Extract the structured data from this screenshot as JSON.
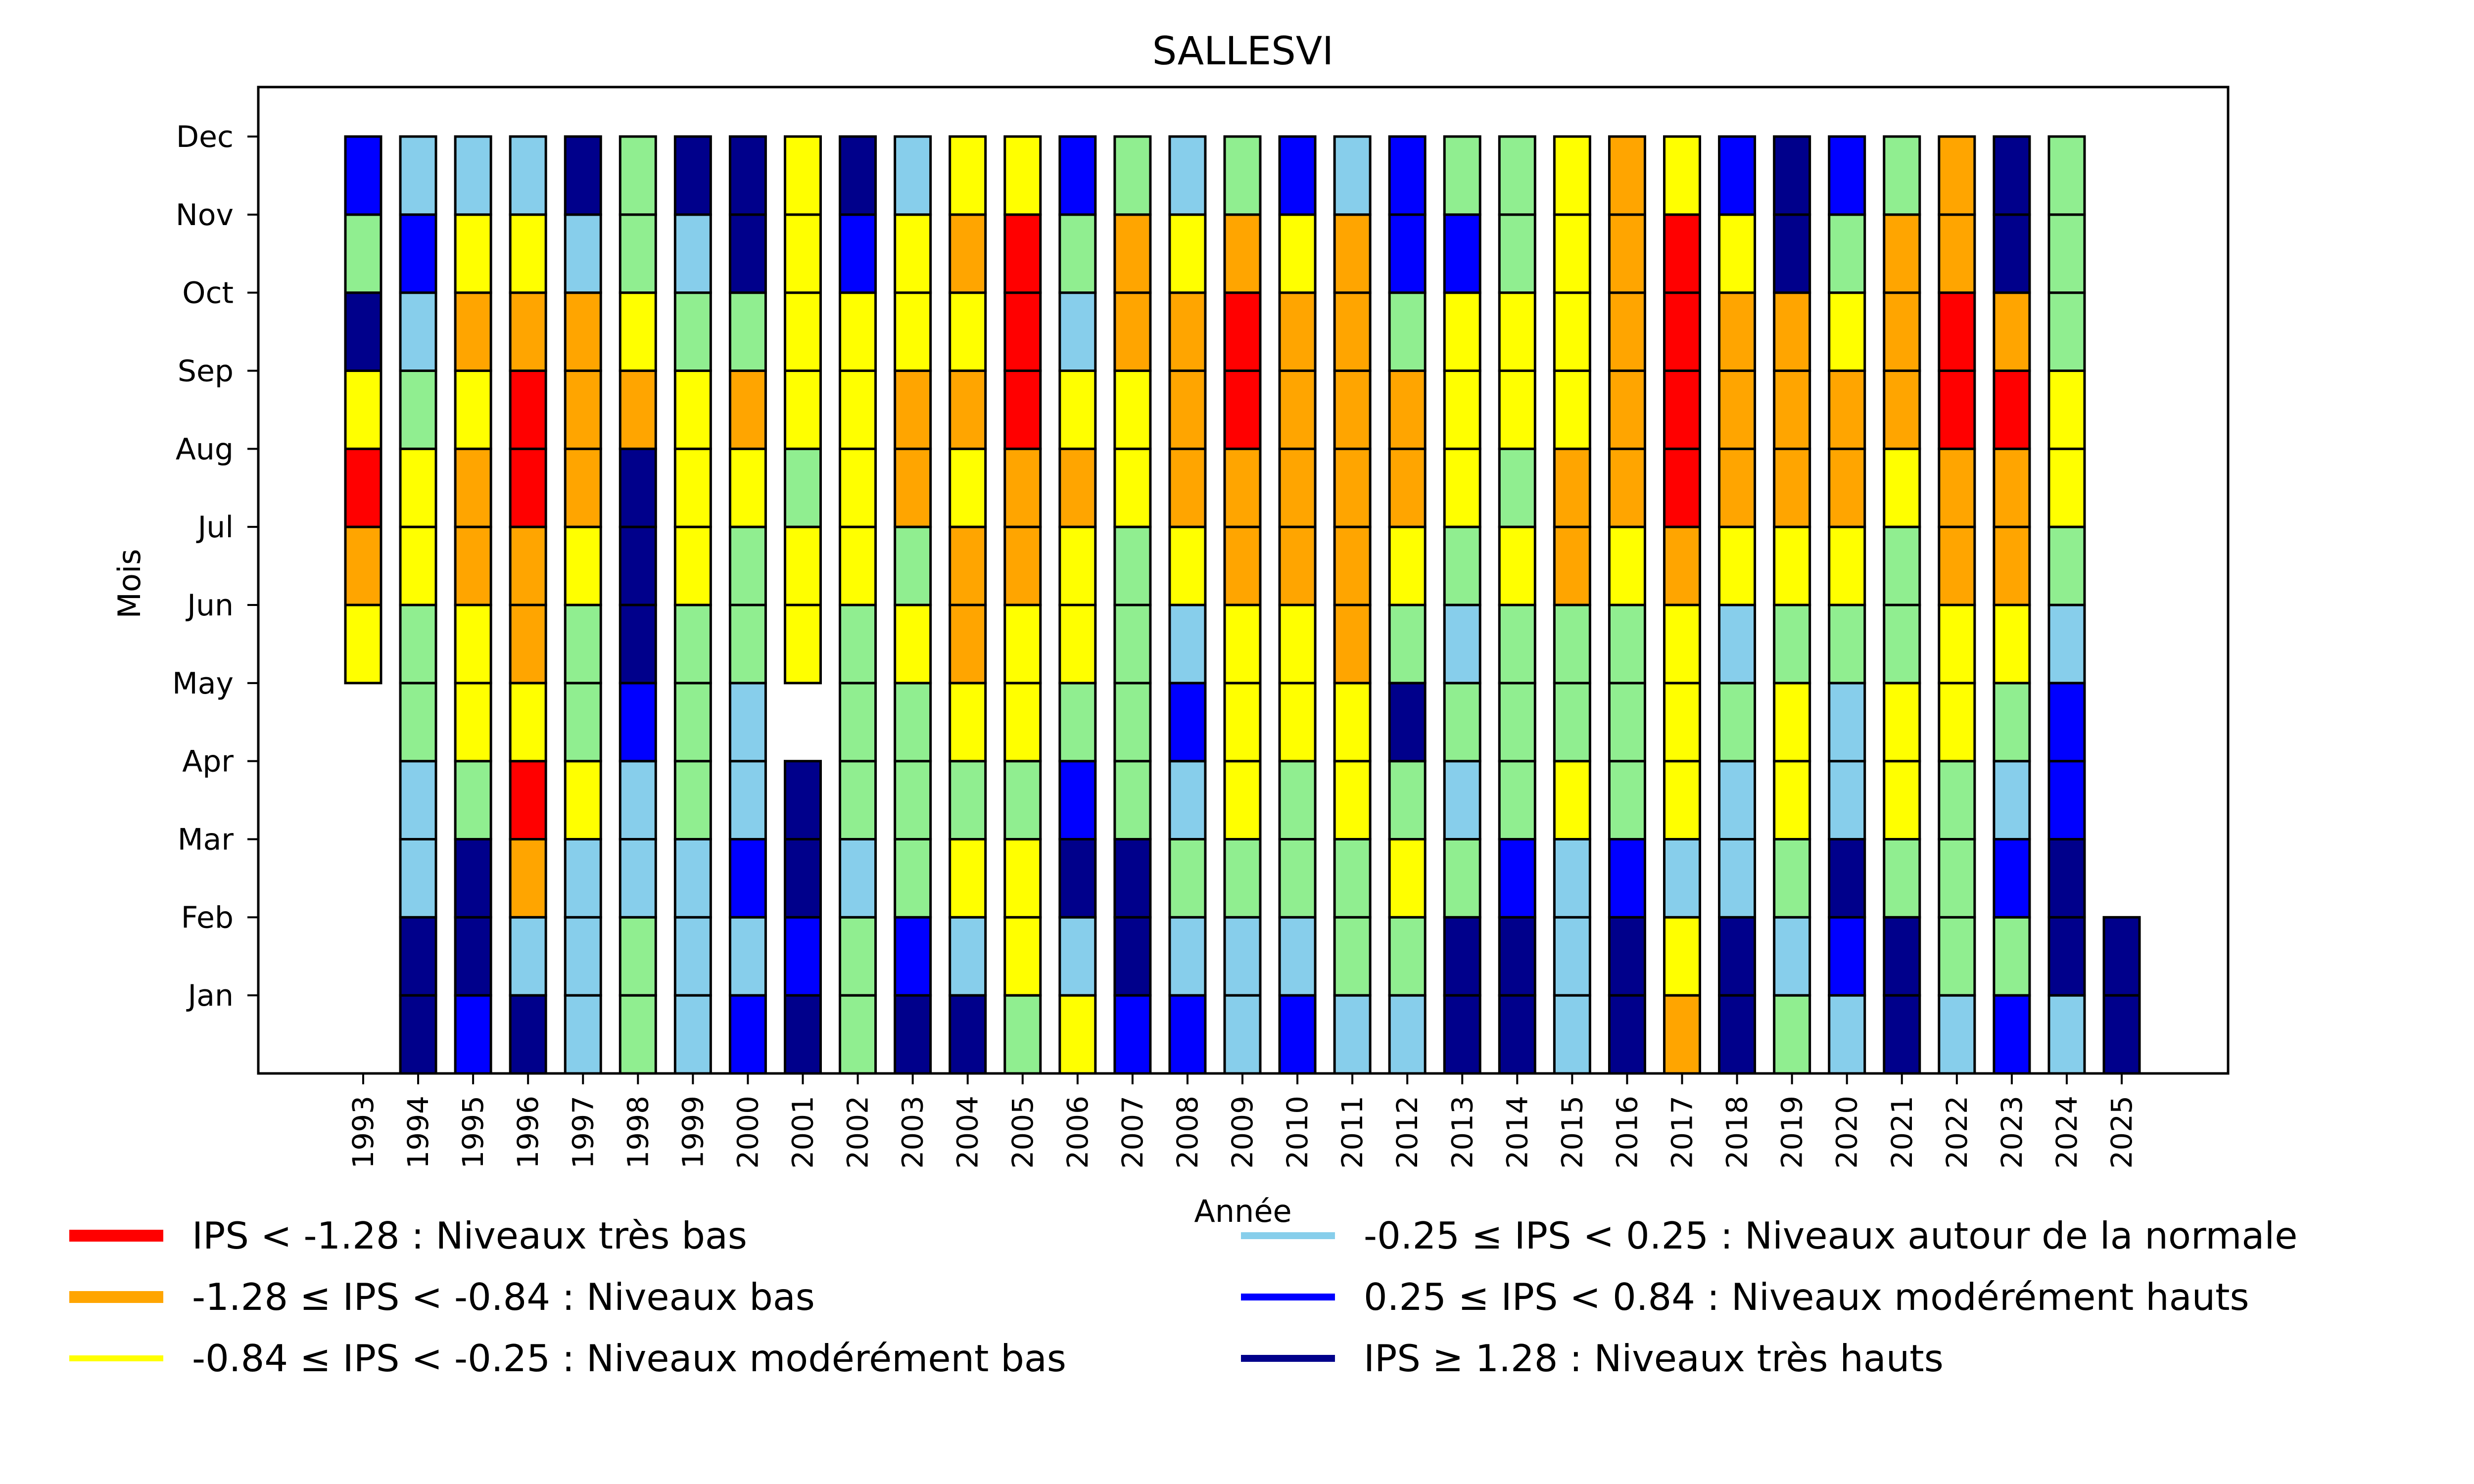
{
  "chart_data": {
    "type": "heatmap",
    "title": "SALLESVI",
    "xlabel": "Année",
    "ylabel": "Mois",
    "months": [
      "Jan",
      "Feb",
      "Mar",
      "Apr",
      "May",
      "Jun",
      "Jul",
      "Aug",
      "Sep",
      "Oct",
      "Nov",
      "Dec"
    ],
    "years": [
      1993,
      1994,
      1995,
      1996,
      1997,
      1998,
      1999,
      2000,
      2001,
      2002,
      2003,
      2004,
      2005,
      2006,
      2007,
      2008,
      2009,
      2010,
      2011,
      2012,
      2013,
      2014,
      2015,
      2016,
      2017,
      2018,
      2019,
      2020,
      2021,
      2022,
      2023,
      2024,
      2025
    ],
    "categories": {
      "R": {
        "label": "IPS < -1.28 : Niveaux très bas",
        "color": "#ff0000"
      },
      "O": {
        "label": "-1.28 ≤ IPS < -0.84 : Niveaux bas",
        "color": "#ffa500"
      },
      "Y": {
        "label": "-0.84 ≤ IPS < -0.25 : Niveaux modérément bas",
        "color": "#ffff00"
      },
      "G": {
        "label": "",
        "color": "#90ee90"
      },
      "S": {
        "label": "-0.25 ≤ IPS < 0.25 : Niveaux autour de la normale",
        "color": "#87ceeb"
      },
      "B": {
        "label": "0.25 ≤ IPS < 0.84 : Niveaux modérément hauts",
        "color": "#0000ff"
      },
      "N": {
        "label": "IPS ≥ 1.28 : Niveaux très hauts",
        "color": "#00008b"
      }
    },
    "values_note": "Per year, 12 entries Jan..Dec; null = no data",
    "values": {
      "1993": [
        null,
        null,
        null,
        null,
        null,
        "Y",
        "O",
        "R",
        "Y",
        "N",
        "G",
        "B"
      ],
      "1994": [
        "N",
        "N",
        "S",
        "S",
        "G",
        "G",
        "Y",
        "Y",
        "G",
        "S",
        "B",
        "S"
      ],
      "1995": [
        "B",
        "N",
        "N",
        "G",
        "Y",
        "Y",
        "O",
        "O",
        "Y",
        "O",
        "Y",
        "S"
      ],
      "1996": [
        "N",
        "S",
        "O",
        "R",
        "Y",
        "O",
        "O",
        "R",
        "R",
        "O",
        "Y",
        "S"
      ],
      "1997": [
        "S",
        "S",
        "S",
        "Y",
        "G",
        "G",
        "Y",
        "O",
        "O",
        "O",
        "S",
        "N"
      ],
      "1998": [
        "G",
        "G",
        "S",
        "S",
        "B",
        "N",
        "N",
        "N",
        "O",
        "Y",
        "G",
        "G"
      ],
      "1999": [
        "S",
        "S",
        "S",
        "G",
        "G",
        "G",
        "Y",
        "Y",
        "Y",
        "G",
        "S",
        "N"
      ],
      "2000": [
        "B",
        "S",
        "B",
        "S",
        "S",
        "G",
        "G",
        "Y",
        "O",
        "G",
        "N",
        "N"
      ],
      "2001": [
        "N",
        "B",
        "N",
        "N",
        null,
        "Y",
        "Y",
        "G",
        "Y",
        "Y",
        "Y",
        "Y"
      ],
      "2002": [
        "G",
        "G",
        "S",
        "G",
        "G",
        "G",
        "Y",
        "Y",
        "Y",
        "Y",
        "B",
        "N"
      ],
      "2003": [
        "N",
        "B",
        "G",
        "G",
        "G",
        "Y",
        "G",
        "O",
        "O",
        "Y",
        "Y",
        "S"
      ],
      "2004": [
        "N",
        "S",
        "Y",
        "G",
        "Y",
        "O",
        "O",
        "Y",
        "O",
        "Y",
        "O",
        "Y"
      ],
      "2005": [
        "G",
        "Y",
        "Y",
        "G",
        "Y",
        "Y",
        "O",
        "O",
        "R",
        "R",
        "R",
        "Y"
      ],
      "2006": [
        "Y",
        "S",
        "N",
        "B",
        "G",
        "Y",
        "Y",
        "O",
        "Y",
        "S",
        "G",
        "B"
      ],
      "2007": [
        "B",
        "N",
        "N",
        "G",
        "G",
        "G",
        "G",
        "Y",
        "Y",
        "O",
        "O",
        "G"
      ],
      "2008": [
        "B",
        "S",
        "G",
        "S",
        "B",
        "S",
        "Y",
        "O",
        "O",
        "O",
        "Y",
        "S"
      ],
      "2009": [
        "S",
        "S",
        "G",
        "Y",
        "Y",
        "Y",
        "O",
        "O",
        "R",
        "R",
        "O",
        "G"
      ],
      "2010": [
        "B",
        "S",
        "G",
        "G",
        "Y",
        "Y",
        "O",
        "O",
        "O",
        "O",
        "Y",
        "B"
      ],
      "2011": [
        "S",
        "G",
        "G",
        "Y",
        "Y",
        "O",
        "O",
        "O",
        "O",
        "O",
        "O",
        "S"
      ],
      "2012": [
        "S",
        "G",
        "Y",
        "G",
        "N",
        "G",
        "Y",
        "O",
        "O",
        "G",
        "B",
        "B"
      ],
      "2013": [
        "N",
        "N",
        "G",
        "S",
        "G",
        "S",
        "G",
        "Y",
        "Y",
        "Y",
        "B",
        "G"
      ],
      "2014": [
        "N",
        "N",
        "B",
        "G",
        "G",
        "G",
        "Y",
        "G",
        "Y",
        "Y",
        "G",
        "G"
      ],
      "2015": [
        "S",
        "S",
        "S",
        "Y",
        "G",
        "G",
        "O",
        "O",
        "Y",
        "Y",
        "Y",
        "Y"
      ],
      "2016": [
        "N",
        "N",
        "B",
        "G",
        "G",
        "G",
        "Y",
        "O",
        "O",
        "O",
        "O",
        "O"
      ],
      "2017": [
        "O",
        "Y",
        "S",
        "Y",
        "Y",
        "Y",
        "O",
        "R",
        "R",
        "R",
        "R",
        "Y"
      ],
      "2018": [
        "N",
        "N",
        "S",
        "S",
        "G",
        "S",
        "Y",
        "O",
        "O",
        "O",
        "Y",
        "B"
      ],
      "2019": [
        "G",
        "S",
        "G",
        "Y",
        "Y",
        "G",
        "Y",
        "O",
        "O",
        "O",
        "N",
        "N"
      ],
      "2020": [
        "S",
        "B",
        "N",
        "S",
        "S",
        "G",
        "Y",
        "O",
        "O",
        "Y",
        "G",
        "B"
      ],
      "2021": [
        "N",
        "N",
        "G",
        "Y",
        "Y",
        "G",
        "G",
        "Y",
        "O",
        "O",
        "O",
        "G"
      ],
      "2022": [
        "S",
        "G",
        "G",
        "G",
        "Y",
        "Y",
        "O",
        "O",
        "R",
        "R",
        "O",
        "O"
      ],
      "2023": [
        "B",
        "G",
        "B",
        "S",
        "G",
        "Y",
        "O",
        "O",
        "R",
        "O",
        "N",
        "N"
      ],
      "2024": [
        "S",
        "N",
        "N",
        "B",
        "B",
        "S",
        "G",
        "Y",
        "Y",
        "G",
        "G",
        "G"
      ],
      "2025": [
        "N",
        "N",
        null,
        null,
        null,
        null,
        null,
        null,
        null,
        null,
        null,
        null
      ]
    },
    "legend": [
      {
        "key": "R",
        "label": "IPS < -1.28 : Niveaux très bas",
        "color": "#ff0000"
      },
      {
        "key": "O",
        "label": "-1.28 ≤ IPS < -0.84 : Niveaux bas",
        "color": "#ffa500"
      },
      {
        "key": "Y",
        "label": "-0.84 ≤ IPS < -0.25 : Niveaux modérément bas",
        "color": "#ffff00"
      },
      {
        "key": "S",
        "label": "-0.25 ≤ IPS < 0.25 : Niveaux autour de la normale",
        "color": "#87ceeb"
      },
      {
        "key": "B",
        "label": "0.25 ≤ IPS < 0.84 : Niveaux modérément hauts",
        "color": "#0000ff"
      },
      {
        "key": "N",
        "label": "IPS ≥ 1.28 : Niveaux très hauts",
        "color": "#00008b"
      }
    ],
    "legend_placement": "bottom (two columns)",
    "grid": false
  }
}
